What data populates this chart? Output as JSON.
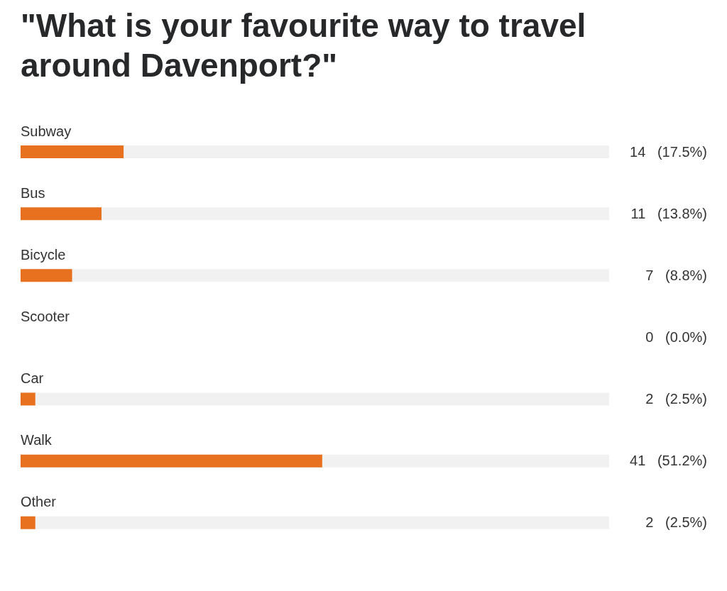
{
  "chart_data": {
    "type": "bar",
    "orientation": "horizontal",
    "title": "\"What is your favourite way to travel around Davenport?\"",
    "categories": [
      "Subway",
      "Bus",
      "Bicycle",
      "Scooter",
      "Car",
      "Walk",
      "Other"
    ],
    "values": [
      14,
      11,
      7,
      0,
      2,
      41,
      2
    ],
    "value_labels": [
      "14   (17.5%)",
      "11   (13.8%)",
      "7   (8.8%)",
      "0   (0.0%)",
      "2   (2.5%)",
      "41   (51.2%)",
      "2   (2.5%)"
    ],
    "color": "#e8711f",
    "xlim": [
      0,
      80
    ],
    "tick_labels": false,
    "grid": false,
    "legend": false
  }
}
